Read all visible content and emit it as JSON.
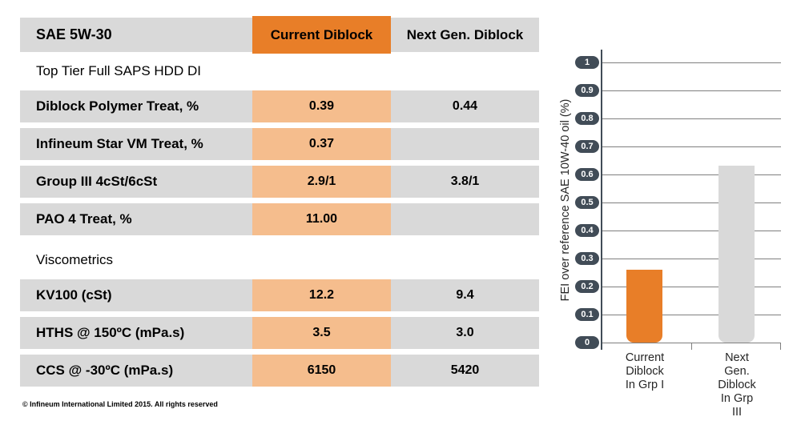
{
  "page": {
    "footer": "© Infineum International Limited 2015. All rights reserved"
  },
  "table": {
    "header": {
      "title": "SAE 5W-30",
      "col_current": "Current Diblock",
      "col_nextgen": "Next Gen. Diblock"
    },
    "sections": [
      {
        "subtitle": "Top Tier Full SAPS HDD DI",
        "rows": [
          {
            "label": "Diblock Polymer Treat, %",
            "current": "0.39",
            "nextgen": "0.44"
          },
          {
            "label": "Infineum Star VM Treat, %",
            "current": "0.37",
            "nextgen": ""
          },
          {
            "label": "Group III 4cSt/6cSt",
            "current": "2.9/1",
            "nextgen": "3.8/1"
          },
          {
            "label": "PAO 4 Treat, %",
            "current": "11.00",
            "nextgen": ""
          }
        ]
      },
      {
        "subtitle": "Viscometrics",
        "rows": [
          {
            "label": "KV100 (cSt)",
            "current": "12.2",
            "nextgen": "9.4"
          },
          {
            "label": "HTHS @ 150ºC (mPa.s)",
            "current": "3.5",
            "nextgen": "3.0"
          },
          {
            "label": "CCS @ -30ºC (mPa.s)",
            "current": "6150",
            "nextgen": "5420"
          }
        ]
      }
    ]
  },
  "chart_data": {
    "type": "bar",
    "categories": [
      "Current\nDiblock\nIn Grp I",
      "Next Gen.\nDiblock\nIn Grp III"
    ],
    "values": [
      0.26,
      0.63
    ],
    "series_colors": [
      "#E87E28",
      "#D9D9D9"
    ],
    "title": "",
    "xlabel": "",
    "ylabel": "FEI over reference SAE 10W-40 oil (%)",
    "ylim": [
      0,
      1
    ],
    "yticks": [
      "0",
      "0.1",
      "0.2",
      "0.3",
      "0.4",
      "0.5",
      "0.6",
      "0.7",
      "0.8",
      "0.9",
      "1"
    ],
    "grid": true,
    "legend": false
  },
  "colors": {
    "accent_orange": "#E87E28",
    "light_orange": "#F5BD8D",
    "cell_gray": "#D9D9D9",
    "axis_dark": "#414C57",
    "gridline": "#7F7F7F"
  }
}
